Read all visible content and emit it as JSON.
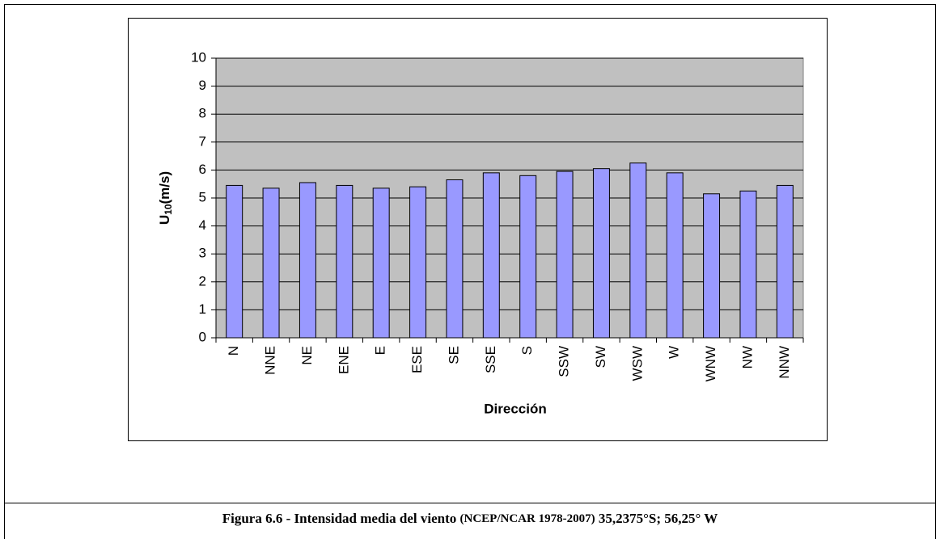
{
  "chart_data": {
    "type": "bar",
    "categories": [
      "N",
      "NNE",
      "NE",
      "ENE",
      "E",
      "ESE",
      "SE",
      "SSE",
      "S",
      "SSW",
      "SW",
      "WSW",
      "W",
      "WNW",
      "NW",
      "NNW"
    ],
    "values": [
      5.45,
      5.35,
      5.55,
      5.45,
      5.35,
      5.4,
      5.65,
      5.9,
      5.8,
      5.95,
      6.05,
      6.25,
      5.9,
      5.15,
      5.25,
      5.45
    ],
    "color": "#9999ff",
    "ylim": [
      0,
      10
    ],
    "yticks": [
      0,
      1,
      2,
      3,
      4,
      5,
      6,
      7,
      8,
      9,
      10
    ],
    "grid": true,
    "ylabel": {
      "main": "U",
      "sub": "10",
      "rest": "(m/s)"
    },
    "xlabel": "Dirección"
  },
  "caption": {
    "part1": "Figura 6.6 -  Intensidad media del viento",
    "part2": "(NCEP/NCAR  1978-2007)",
    "part3": "35,2375°S; 56,25° W"
  }
}
